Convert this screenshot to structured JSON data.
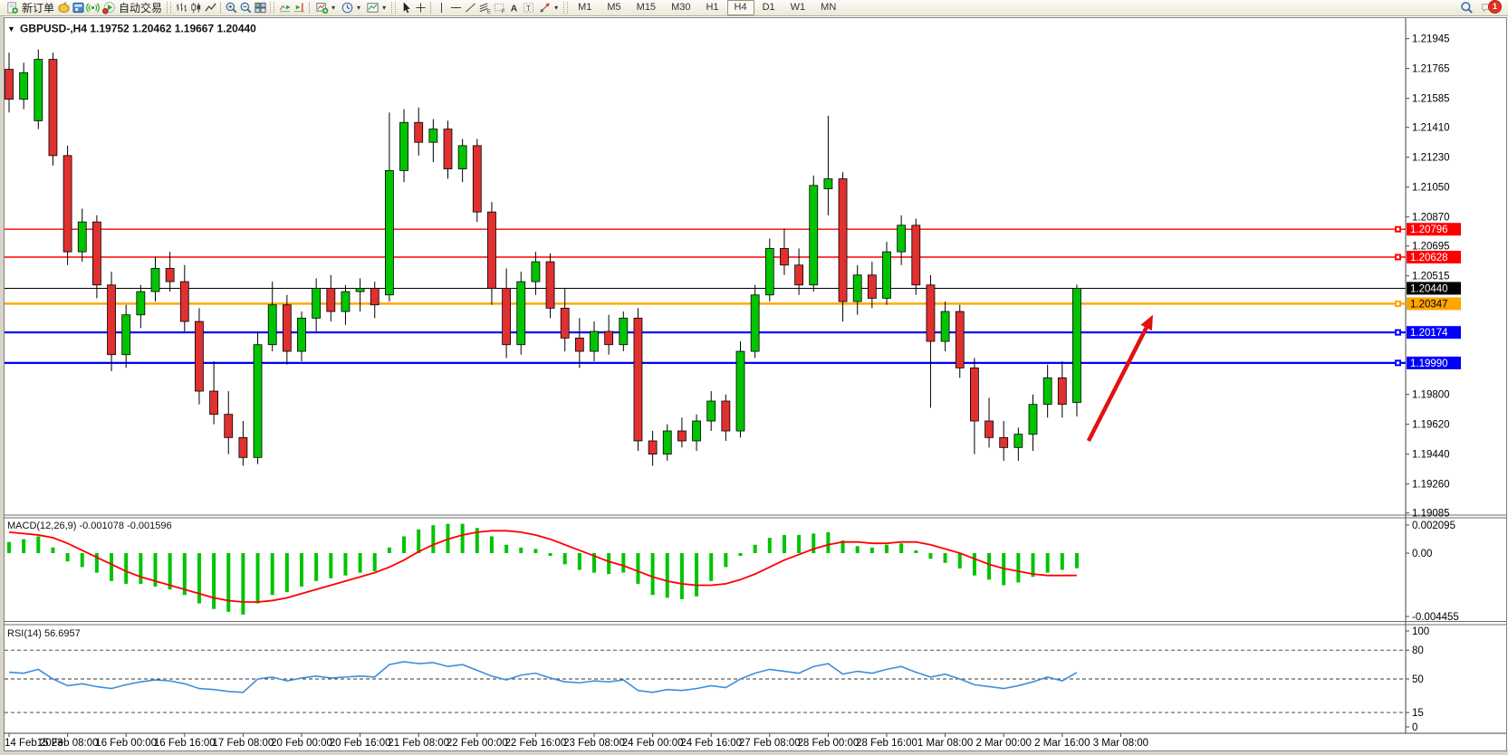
{
  "toolbar": {
    "new_order_label": "新订单",
    "autotrading_label": "自动交易",
    "timeframes": [
      "M1",
      "M5",
      "M15",
      "M30",
      "H1",
      "H4",
      "D1",
      "W1",
      "MN"
    ],
    "active_timeframe": "H4",
    "notification_badge": "1",
    "icons": [
      "new-order-icon",
      "market-watch-icon",
      "terminal-icon",
      "signals-icon",
      "autotrading-icon",
      "bar-chart-icon",
      "candlestick-chart-icon",
      "line-chart-icon",
      "zoom-in-icon",
      "zoom-out-icon",
      "tile-windows-icon",
      "auto-scroll-icon",
      "chart-shift-icon",
      "add-indicator-icon",
      "period-clock-icon",
      "template-icon",
      "cursor-icon",
      "crosshair-icon",
      "vertical-line-icon",
      "horizontal-line-icon",
      "trendline-icon",
      "fibonacci-icon",
      "channel-icon",
      "text-icon",
      "label-icon",
      "shapes-icon",
      "search-icon",
      "chat-icon"
    ]
  },
  "chart": {
    "collapse_glyph": "▼",
    "title_text": "GBPUSD-,H4  1.19752 1.20462 1.19667 1.20440"
  },
  "chart_data": {
    "type": "candlestick",
    "symbol": "GBPUSD-",
    "period": "H4",
    "ohlc_display": {
      "open": "1.19752",
      "high": "1.20462",
      "low": "1.19667",
      "close": "1.20440"
    },
    "colors": {
      "up": "#00C400",
      "down": "#E03030",
      "outline": "#000000",
      "macd_hist": "#00C400",
      "macd_signal": "#FF0000",
      "rsi_line": "#3E8FDB",
      "arrow": "#E01212"
    },
    "price_axis_ticks": [
      "1.21945",
      "1.21765",
      "1.21585",
      "1.21410",
      "1.21230",
      "1.21050",
      "1.20870",
      "1.20695",
      "1.20515",
      "1.19800",
      "1.19620",
      "1.19440",
      "1.19260",
      "1.19085"
    ],
    "hlines": [
      {
        "price": 1.20796,
        "label": "1.20796",
        "color": "#FF0000",
        "label_fg": "#FFFFFF",
        "width": 1.4,
        "marker": true
      },
      {
        "price": 1.20628,
        "label": "1.20628",
        "color": "#FF0000",
        "label_fg": "#FFFFFF",
        "width": 1.4,
        "marker": true
      },
      {
        "price": 1.2044,
        "label": "1.20440",
        "color": "#000000",
        "label_fg": "#FFFFFF",
        "width": 1,
        "marker": false
      },
      {
        "price": 1.20347,
        "label": "1.20347",
        "color": "#FFA500",
        "label_fg": "#000000",
        "width": 2.4,
        "marker": true
      },
      {
        "price": 1.20174,
        "label": "1.20174",
        "color": "#0000FF",
        "label_fg": "#FFFFFF",
        "width": 2.2,
        "marker": true
      },
      {
        "price": 1.1999,
        "label": "1.19990",
        "color": "#0000FF",
        "label_fg": "#FFFFFF",
        "width": 2.2,
        "marker": true
      }
    ],
    "candles": [
      [
        1.2176,
        1.2186,
        1.215,
        1.2158
      ],
      [
        1.2158,
        1.218,
        1.2152,
        1.2174
      ],
      [
        1.2145,
        1.2188,
        1.214,
        1.2182
      ],
      [
        1.2182,
        1.2186,
        1.2118,
        1.2124
      ],
      [
        1.2124,
        1.213,
        1.2058,
        1.2066
      ],
      [
        1.2066,
        1.2092,
        1.206,
        1.2084
      ],
      [
        1.2084,
        1.2088,
        1.2038,
        1.2046
      ],
      [
        1.2046,
        1.2054,
        1.1994,
        1.2004
      ],
      [
        1.2004,
        1.2034,
        1.1996,
        1.2028
      ],
      [
        1.2028,
        1.2046,
        1.202,
        1.2042
      ],
      [
        1.2042,
        1.2063,
        1.2036,
        1.2056
      ],
      [
        1.2056,
        1.2066,
        1.2042,
        1.2048
      ],
      [
        1.2048,
        1.2058,
        1.2018,
        1.2024
      ],
      [
        1.2024,
        1.2032,
        1.1974,
        1.1982
      ],
      [
        1.1982,
        1.2,
        1.1962,
        1.1968
      ],
      [
        1.1968,
        1.1982,
        1.1944,
        1.1954
      ],
      [
        1.1954,
        1.1964,
        1.1937,
        1.1942
      ],
      [
        1.1942,
        1.2018,
        1.1938,
        1.201
      ],
      [
        1.201,
        1.2048,
        1.2006,
        1.2034
      ],
      [
        1.2034,
        1.204,
        1.1998,
        1.2006
      ],
      [
        1.2006,
        1.203,
        1.2,
        1.2026
      ],
      [
        1.2026,
        1.205,
        1.2018,
        1.2044
      ],
      [
        1.2044,
        1.2052,
        1.2024,
        1.203
      ],
      [
        1.203,
        1.2046,
        1.2022,
        1.2042
      ],
      [
        1.2042,
        1.205,
        1.203,
        1.2044
      ],
      [
        1.2044,
        1.2048,
        1.2026,
        1.2034
      ],
      [
        1.204,
        1.215,
        1.2036,
        1.2115
      ],
      [
        1.2115,
        1.2152,
        1.2108,
        1.2144
      ],
      [
        1.2144,
        1.2153,
        1.2124,
        1.2132
      ],
      [
        1.2132,
        1.2146,
        1.212,
        1.214
      ],
      [
        1.214,
        1.2145,
        1.211,
        1.2116
      ],
      [
        1.2116,
        1.2134,
        1.2108,
        1.213
      ],
      [
        1.213,
        1.2134,
        1.2084,
        1.209
      ],
      [
        1.209,
        1.2096,
        1.2034,
        1.2044
      ],
      [
        1.2044,
        1.2056,
        1.2002,
        1.201
      ],
      [
        1.201,
        1.2054,
        1.2004,
        1.2048
      ],
      [
        1.2048,
        1.2066,
        1.204,
        1.206
      ],
      [
        1.206,
        1.2065,
        1.2026,
        1.2032
      ],
      [
        1.2032,
        1.2044,
        1.2006,
        1.2014
      ],
      [
        1.2014,
        1.2026,
        1.1996,
        1.2006
      ],
      [
        1.2006,
        1.2024,
        1.2,
        1.2018
      ],
      [
        1.2018,
        1.2028,
        1.2004,
        1.201
      ],
      [
        1.201,
        1.203,
        1.2006,
        1.2026
      ],
      [
        1.2026,
        1.2032,
        1.1946,
        1.1952
      ],
      [
        1.1952,
        1.1958,
        1.1937,
        1.1944
      ],
      [
        1.1944,
        1.1962,
        1.194,
        1.1958
      ],
      [
        1.1958,
        1.1966,
        1.1948,
        1.1952
      ],
      [
        1.1952,
        1.1968,
        1.1946,
        1.1964
      ],
      [
        1.1964,
        1.1982,
        1.1958,
        1.1976
      ],
      [
        1.1976,
        1.198,
        1.1952,
        1.1958
      ],
      [
        1.1958,
        1.2012,
        1.1954,
        1.2006
      ],
      [
        1.2006,
        1.2046,
        1.2002,
        1.204
      ],
      [
        1.204,
        1.2074,
        1.2036,
        1.2068
      ],
      [
        1.2068,
        1.208,
        1.2052,
        1.2058
      ],
      [
        1.2058,
        1.2068,
        1.204,
        1.2046
      ],
      [
        1.2046,
        1.2112,
        1.2042,
        1.2106
      ],
      [
        1.2104,
        1.2148,
        1.2088,
        1.211
      ],
      [
        1.211,
        1.2114,
        1.2024,
        1.2036
      ],
      [
        1.2036,
        1.2058,
        1.2028,
        1.2052
      ],
      [
        1.2052,
        1.206,
        1.2032,
        1.2038
      ],
      [
        1.2038,
        1.2072,
        1.2034,
        1.2066
      ],
      [
        1.2066,
        1.2088,
        1.2058,
        1.2082
      ],
      [
        1.2082,
        1.2086,
        1.204,
        1.2046
      ],
      [
        1.2046,
        1.2052,
        1.1972,
        1.2012
      ],
      [
        1.2012,
        1.2036,
        1.2006,
        1.203
      ],
      [
        1.203,
        1.2034,
        1.199,
        1.1996
      ],
      [
        1.1996,
        1.2002,
        1.1944,
        1.1964
      ],
      [
        1.1964,
        1.1978,
        1.1948,
        1.1954
      ],
      [
        1.1954,
        1.1964,
        1.194,
        1.1948
      ],
      [
        1.1948,
        1.196,
        1.194,
        1.1956
      ],
      [
        1.1956,
        1.198,
        1.1946,
        1.1974
      ],
      [
        1.1974,
        1.1998,
        1.1966,
        1.199
      ],
      [
        1.199,
        1.2,
        1.1966,
        1.1974
      ],
      [
        1.19752,
        1.20462,
        1.19667,
        1.2044
      ]
    ],
    "x_labels": [
      "14 Feb 2023",
      "15 Feb 08:00",
      "16 Feb 00:00",
      "16 Feb 16:00",
      "17 Feb 08:00",
      "20 Feb 00:00",
      "20 Feb 16:00",
      "21 Feb 08:00",
      "22 Feb 00:00",
      "22 Feb 16:00",
      "23 Feb 08:00",
      "24 Feb 00:00",
      "24 Feb 16:00",
      "27 Feb 08:00",
      "28 Feb 00:00",
      "28 Feb 16:00",
      "1 Mar 08:00",
      "2 Mar 00:00",
      "2 Mar 16:00",
      "3 Mar 08:00"
    ],
    "macd": {
      "display": "MACD(12,26,9) -0.001078 -0.001596",
      "axis": [
        "0.002095",
        "0.00",
        "-0.004455"
      ],
      "histogram": [
        0.0008,
        0.001,
        0.0012,
        0.0004,
        -0.0006,
        -0.001,
        -0.0014,
        -0.002,
        -0.0022,
        -0.0022,
        -0.0024,
        -0.0026,
        -0.003,
        -0.0036,
        -0.004,
        -0.0042,
        -0.0044,
        -0.0036,
        -0.003,
        -0.0028,
        -0.0024,
        -0.002,
        -0.0018,
        -0.0016,
        -0.0014,
        -0.0013,
        0.0004,
        0.0012,
        0.0017,
        0.002,
        0.0021,
        0.0021,
        0.0018,
        0.0012,
        0.0006,
        0.0004,
        0.0003,
        -0.0002,
        -0.0008,
        -0.0012,
        -0.0014,
        -0.0015,
        -0.0014,
        -0.0022,
        -0.003,
        -0.0032,
        -0.0033,
        -0.0031,
        -0.002,
        -0.001,
        -0.0002,
        0.0006,
        0.0011,
        0.0013,
        0.0013,
        0.0014,
        0.0015,
        0.0009,
        0.0005,
        0.0004,
        0.0006,
        0.0007,
        0.0002,
        -0.0004,
        -0.0007,
        -0.0011,
        -0.0016,
        -0.0019,
        -0.0023,
        -0.0021,
        -0.0017,
        -0.0014,
        -0.0012,
        -0.001078
      ],
      "signal": [
        0.0015,
        0.0014,
        0.0013,
        0.0011,
        0.0007,
        0.0002,
        -0.0003,
        -0.0008,
        -0.0013,
        -0.0017,
        -0.002,
        -0.0023,
        -0.0026,
        -0.0029,
        -0.0032,
        -0.0034,
        -0.0035,
        -0.0035,
        -0.0034,
        -0.0032,
        -0.0029,
        -0.0026,
        -0.0023,
        -0.002,
        -0.0017,
        -0.0014,
        -0.001,
        -0.0005,
        0.0001,
        0.0006,
        0.001,
        0.0013,
        0.0015,
        0.0016,
        0.0016,
        0.0015,
        0.0013,
        0.001,
        0.0006,
        0.0002,
        -0.0002,
        -0.0006,
        -0.0009,
        -0.0013,
        -0.0017,
        -0.002,
        -0.0022,
        -0.0023,
        -0.0023,
        -0.0022,
        -0.0019,
        -0.0015,
        -0.001,
        -0.0005,
        -0.0001,
        0.0003,
        0.0006,
        0.0008,
        0.0008,
        0.0007,
        0.0007,
        0.0008,
        0.0008,
        0.0006,
        0.0003,
        0.0,
        -0.0004,
        -0.0008,
        -0.0011,
        -0.0013,
        -0.0015,
        -0.0016,
        -0.0016,
        -0.001596
      ]
    },
    "rsi": {
      "display": "RSI(14) 56.6957",
      "axis": [
        "100",
        "80",
        "50",
        "15",
        "0"
      ],
      "levels": [
        80,
        50,
        15
      ],
      "line": [
        57,
        56,
        60,
        50,
        43,
        45,
        42,
        40,
        44,
        47,
        49,
        48,
        45,
        40,
        39,
        37,
        36,
        50,
        52,
        48,
        51,
        53,
        51,
        52,
        53,
        52,
        65,
        68,
        66,
        67,
        63,
        65,
        59,
        53,
        49,
        54,
        56,
        51,
        47,
        46,
        48,
        47,
        49,
        38,
        36,
        39,
        38,
        40,
        43,
        41,
        50,
        56,
        60,
        58,
        56,
        63,
        66,
        55,
        58,
        56,
        60,
        63,
        57,
        52,
        55,
        50,
        44,
        42,
        40,
        43,
        47,
        52,
        48,
        56.7
      ]
    },
    "arrow": {
      "from_bar": 73.8,
      "from_price": 1.1952,
      "to_bar": 78.2,
      "to_price": 1.2028,
      "color": "#E01212"
    }
  }
}
